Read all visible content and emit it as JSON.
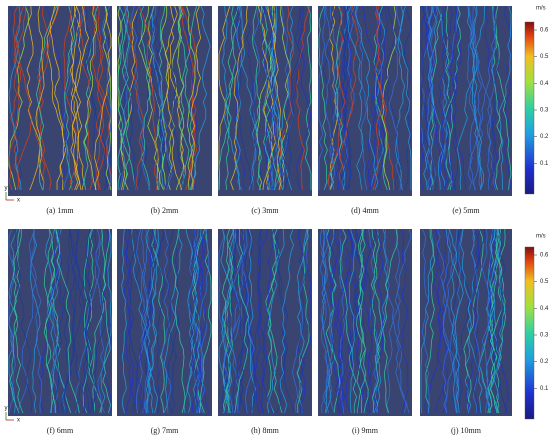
{
  "rows": [
    {
      "panels": [
        {
          "caption": "(a) 1mm"
        },
        {
          "caption": "(b) 2mm"
        },
        {
          "caption": "(c) 3mm"
        },
        {
          "caption": "(d) 4mm"
        },
        {
          "caption": "(e) 5mm"
        }
      ],
      "colorbar": {
        "unit": "m/s",
        "ticks": [
          "0.6",
          "0.5",
          "0.4",
          "0.3",
          "0.2",
          "0.1"
        ]
      },
      "axes": {
        "y": "y",
        "x": "x"
      }
    },
    {
      "panels": [
        {
          "caption": "(f) 6mm"
        },
        {
          "caption": "(g) 7mm"
        },
        {
          "caption": "(h) 8mm"
        },
        {
          "caption": "(i) 9mm"
        },
        {
          "caption": "(j) 10mm"
        }
      ],
      "colorbar": {
        "unit": "m/s",
        "ticks": [
          "0.6",
          "0.5",
          "0.4",
          "0.3",
          "0.2",
          "0.1"
        ]
      },
      "axes": {
        "y": "y",
        "x": "x"
      }
    }
  ]
}
